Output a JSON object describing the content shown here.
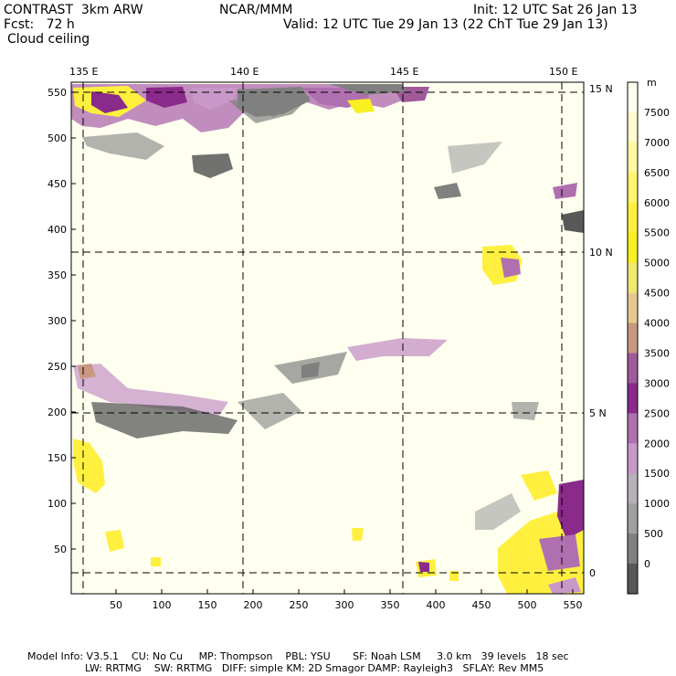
{
  "header": {
    "model": "CONTRAST  3km ARW",
    "org": "NCAR/MMM",
    "init": "Init: 12 UTC Sat 26 Jan 13",
    "fcst": "Fcst:   72 h",
    "valid": "Valid: 12 UTC Tue 29 Jan 13 (22 ChT Tue 29 Jan 13)",
    "field": "Cloud ceiling"
  },
  "map": {
    "top_lon_labels": [
      "135 E",
      "140 E",
      "145 E",
      "150 E"
    ],
    "right_lat_labels": [
      "15 N",
      "10 N",
      "5 N",
      "0"
    ],
    "x_ticks": [
      "50",
      "100",
      "150",
      "200",
      "250",
      "300",
      "350",
      "400",
      "450",
      "500",
      "550"
    ],
    "y_ticks": [
      "550",
      "500",
      "450",
      "400",
      "350",
      "300",
      "250",
      "200",
      "150",
      "100",
      "50"
    ]
  },
  "colorbar": {
    "unit": "m",
    "labels": [
      "7500",
      "7000",
      "6500",
      "6000",
      "5500",
      "5000",
      "4500",
      "4000",
      "3500",
      "3000",
      "2500",
      "2000",
      "1500",
      "1000",
      "500",
      "0"
    ],
    "colors": [
      "#fffff0",
      "#fffcd0",
      "#fff8a0",
      "#fff570",
      "#fff040",
      "#f8f020",
      "#f0e870",
      "#e8c890",
      "#c89880",
      "#a05a9a",
      "#8a2a8a",
      "#b070b0",
      "#c898c8",
      "#b8b0b8",
      "#a0a0a0",
      "#808080",
      "#585858"
    ]
  },
  "footer": {
    "line1": "Model Info: V3.5.1    CU: No Cu     MP: Thompson    PBL: YSU       SF: Noah LSM     3.0 km   39 levels   18 sec",
    "line2": "                  LW: RRTMG    SW: RRTMG   DIFF: simple KM: 2D Smagor DAMP: Rayleigh3   SFLAY: Rev MM5"
  }
}
